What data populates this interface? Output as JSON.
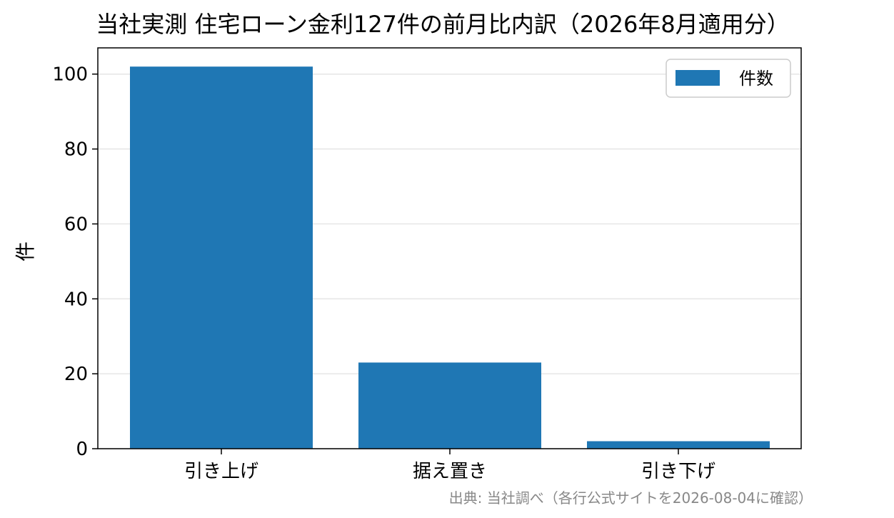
{
  "chart_data": {
    "type": "bar",
    "title": "当社実測 住宅ローン金利127件の前月比内訳（2026年8月適用分）",
    "xlabel": "",
    "ylabel": "件",
    "categories": [
      "引き上げ",
      "据え置き",
      "引き下げ"
    ],
    "series": [
      {
        "name": "件数",
        "values": [
          102,
          23,
          2
        ],
        "color": "#1f77b4"
      }
    ],
    "ylim": [
      0,
      107
    ],
    "yticks": [
      0,
      20,
      40,
      60,
      80,
      100
    ],
    "grid": "horizontal",
    "legend": "top-right",
    "source": "出典: 当社調べ（各行公式サイトを2026-08-04に確認）"
  }
}
